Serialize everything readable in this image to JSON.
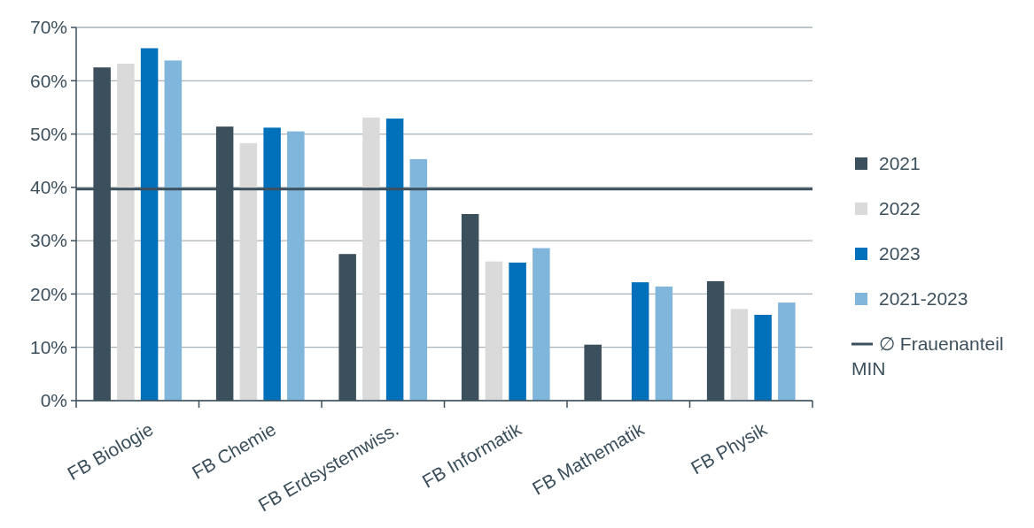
{
  "chart_data": {
    "type": "bar",
    "categories": [
      "FB Biologie",
      "FB Chemie",
      "FB Erdsystemwiss.",
      "FB Informatik",
      "FB Mathematik",
      "FB Physik"
    ],
    "series": [
      {
        "name": "2021",
        "color": "#3b4f5c",
        "values": [
          62.5,
          51.4,
          27.5,
          35.0,
          10.5,
          22.4
        ]
      },
      {
        "name": "2022",
        "color": "#dadada",
        "values": [
          63.2,
          48.3,
          53.1,
          26.1,
          null,
          17.2
        ]
      },
      {
        "name": "2023",
        "color": "#0070bb",
        "values": [
          66.1,
          51.2,
          52.9,
          25.9,
          22.2,
          16.1
        ]
      },
      {
        "name": "2021-2023",
        "color": "#80b6dc",
        "values": [
          63.8,
          50.5,
          45.3,
          28.6,
          21.4,
          18.4
        ]
      }
    ],
    "ref_lines": [
      {
        "axis": "y",
        "value": 39.7,
        "label": "∅ Frauenanteil MIN",
        "color": "#3b4f5c"
      }
    ],
    "ylim": [
      0,
      70
    ],
    "yticks": [
      {
        "value": 0,
        "label": "0%"
      },
      {
        "value": 10,
        "label": "10%"
      },
      {
        "value": 20,
        "label": "20%"
      },
      {
        "value": 30,
        "label": "30%"
      },
      {
        "value": 40,
        "label": "40%"
      },
      {
        "value": 50,
        "label": "50%"
      },
      {
        "value": 60,
        "label": "60%"
      },
      {
        "value": 70,
        "label": "70%"
      }
    ],
    "grid": "y",
    "legend": "right"
  }
}
